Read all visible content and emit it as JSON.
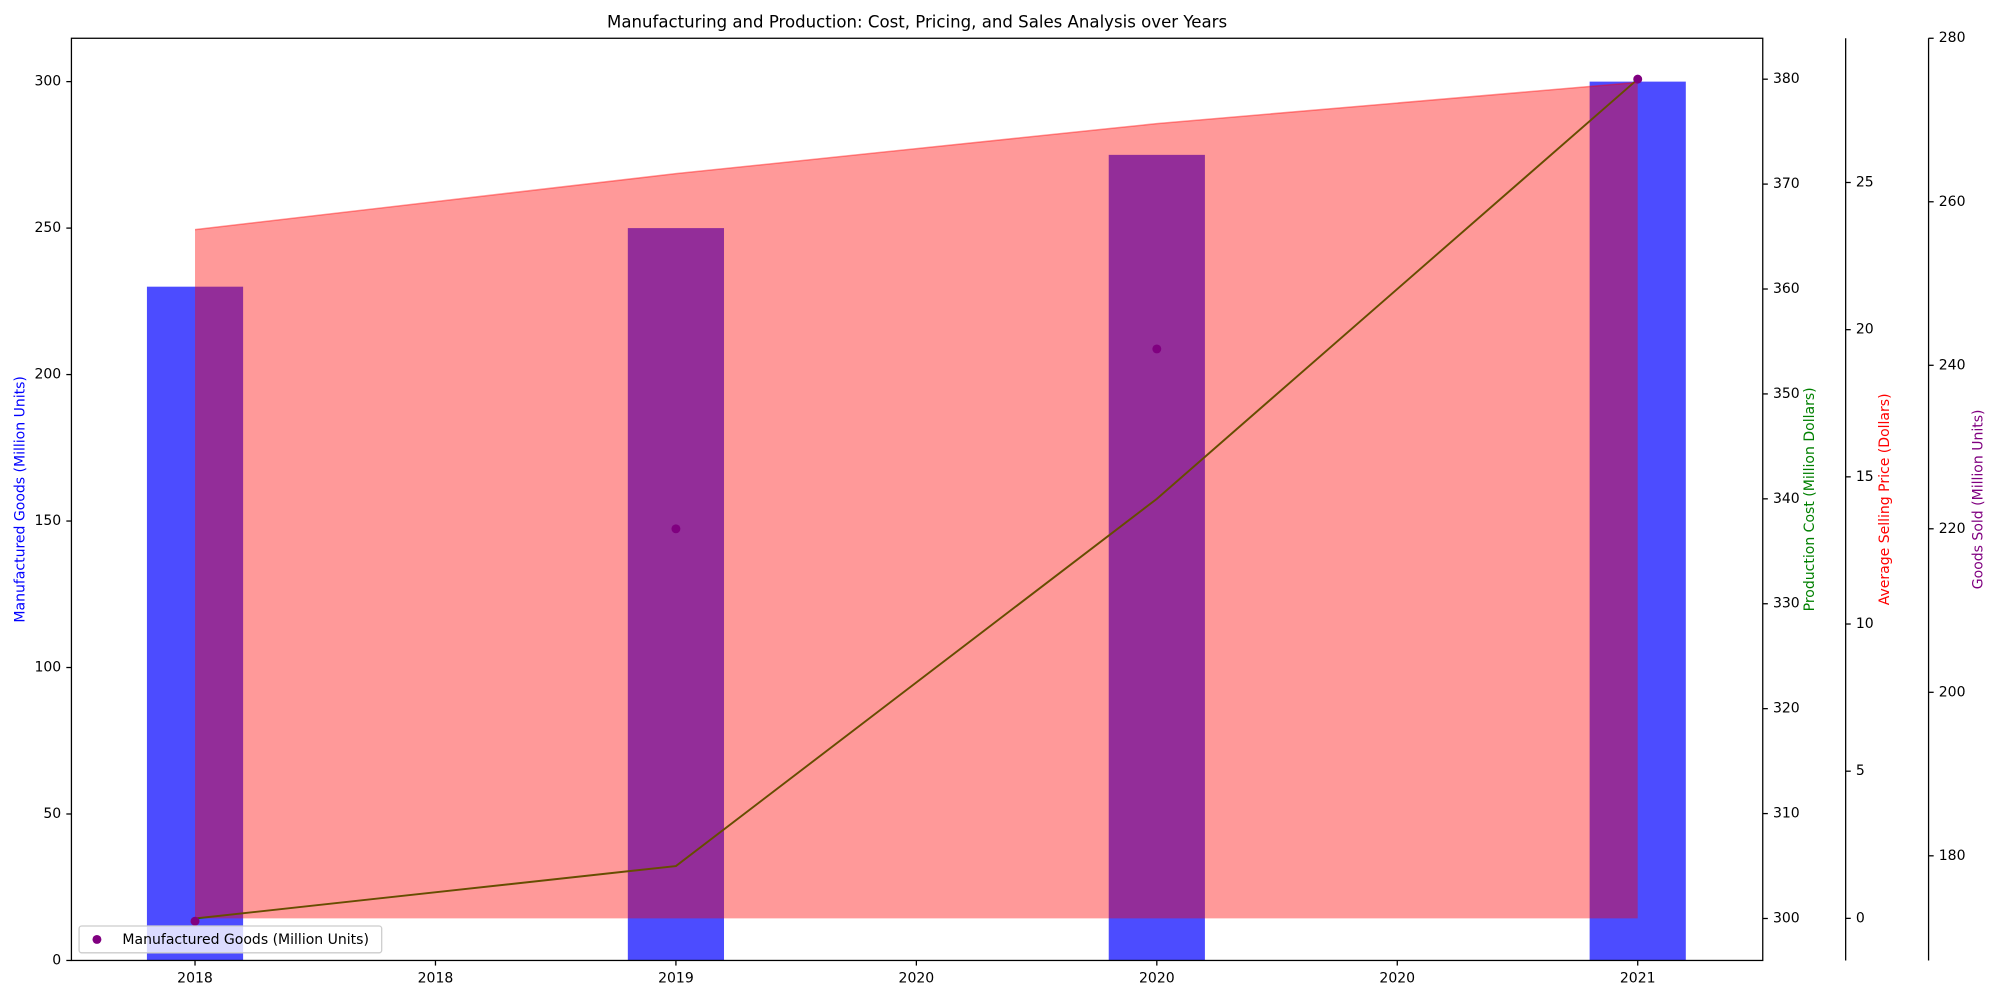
{
  "chart_data": {
    "type": "bar",
    "title": "Manufacturing and Production: Cost, Pricing, and Sales Analysis over Years",
    "x": [
      2018,
      2019,
      2020,
      2021
    ],
    "xlim": [
      2017.743,
      2021.26
    ],
    "xticks": [
      2018,
      {
        "value": 2018.5,
        "label": "2018"
      },
      2019,
      {
        "value": 2019.5,
        "label": "2020"
      },
      2020,
      {
        "value": 2020.5,
        "label": "2020"
      },
      2021
    ],
    "bar_width": 0.2,
    "series": [
      {
        "name": "Manufactured Goods (Million Units)",
        "type": "bar",
        "color": "#0000ff",
        "opacity": 0.7,
        "axis": "y",
        "values": [
          230,
          250,
          275,
          300
        ]
      },
      {
        "name": "Production Cost (Million Dollars)",
        "type": "line",
        "color": "#008000",
        "axis": "y2",
        "values": [
          300,
          305,
          340,
          380
        ]
      },
      {
        "name": "Average Selling Price (Dollars)",
        "type": "area",
        "color": "#ff0000",
        "opacity": 0.4,
        "axis": "y3",
        "values": [
          23.4,
          25.3,
          27.0,
          28.4
        ]
      },
      {
        "name": "Goods Sold (Million Units)",
        "type": "scatter",
        "color": "#800080",
        "axis": "y4",
        "values": [
          172,
          220,
          242,
          275
        ]
      }
    ],
    "ylim": [
      0,
      314.8
    ],
    "yticks": [
      0,
      50,
      100,
      150,
      200,
      250,
      300
    ],
    "y2lim": [
      296,
      383.9
    ],
    "y2ticks": [
      300,
      310,
      320,
      330,
      340,
      350,
      360,
      370,
      380
    ],
    "y3lim": [
      -1.43,
      29.9
    ],
    "y3ticks": [
      0,
      5,
      10,
      15,
      20,
      25
    ],
    "y4lim": [
      167.2,
      280
    ],
    "y4ticks": [
      180,
      200,
      220,
      240,
      260,
      280
    ],
    "legend": {
      "loc": "lower left",
      "series": 0,
      "marker_series": 3
    }
  }
}
